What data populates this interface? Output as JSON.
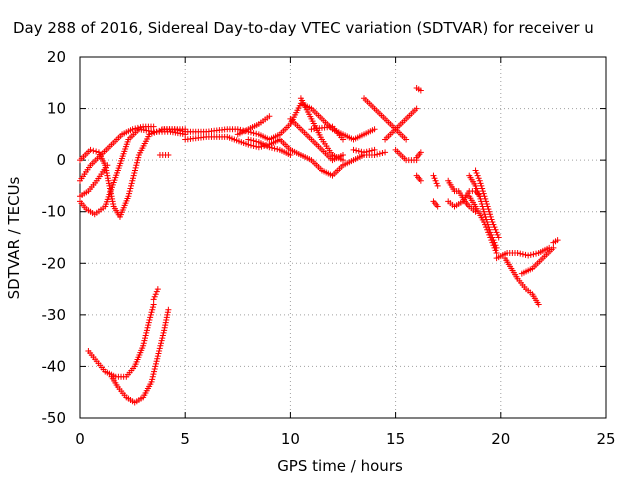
{
  "chart_data": {
    "type": "scatter",
    "title": "Day 288 of 2016, Sidereal Day-to-day VTEC variation (SDTVAR) for receiver u",
    "xlabel": "GPS time / hours",
    "ylabel": "SDTVAR / TECUs",
    "xlim": [
      0,
      25
    ],
    "ylim": [
      -50,
      20
    ],
    "xticks": [
      "0",
      "5",
      "10",
      "15",
      "20",
      "25"
    ],
    "yticks": [
      "20",
      "10",
      "0",
      "-10",
      "-20",
      "-30",
      "-40",
      "-50"
    ],
    "grid": true,
    "marker": "plus",
    "color": "#ff0000",
    "tracks": [
      [
        [
          0,
          -8
        ],
        [
          0.3,
          -9.5
        ],
        [
          0.7,
          -10.5
        ],
        [
          1.2,
          -9
        ],
        [
          1.8,
          -2
        ],
        [
          2.3,
          4
        ],
        [
          2.8,
          6
        ],
        [
          3.5,
          5.5
        ],
        [
          4.3,
          5.5
        ],
        [
          5,
          5
        ]
      ],
      [
        [
          0,
          0
        ],
        [
          0.5,
          2
        ],
        [
          0.9,
          1.5
        ],
        [
          1.2,
          -1
        ],
        [
          1.4,
          -5
        ],
        [
          1.6,
          -9
        ],
        [
          1.9,
          -11
        ],
        [
          2.3,
          -7
        ],
        [
          2.8,
          1
        ],
        [
          3.3,
          5
        ],
        [
          4,
          6
        ],
        [
          5,
          6
        ]
      ],
      [
        [
          0,
          -4
        ],
        [
          0.5,
          -1
        ],
        [
          1,
          1
        ],
        [
          1.5,
          3
        ],
        [
          2,
          5
        ],
        [
          2.5,
          6
        ],
        [
          3,
          6.5
        ],
        [
          3.5,
          6.5
        ]
      ],
      [
        [
          0,
          -7
        ],
        [
          0.4,
          -6
        ],
        [
          0.8,
          -4
        ],
        [
          1.3,
          -1
        ]
      ],
      [
        [
          3.8,
          1
        ],
        [
          4.2,
          1
        ]
      ],
      [
        [
          3.9,
          6
        ],
        [
          4.5,
          6
        ],
        [
          5,
          5.5
        ],
        [
          6,
          5.5
        ],
        [
          7,
          6
        ],
        [
          7.5,
          6
        ],
        [
          8.5,
          5
        ],
        [
          9,
          4
        ],
        [
          9.5,
          5
        ],
        [
          10,
          7
        ],
        [
          10.5,
          11
        ],
        [
          11,
          10
        ],
        [
          11.5,
          8
        ],
        [
          12,
          6
        ],
        [
          12.5,
          5
        ],
        [
          13,
          4
        ],
        [
          13.5,
          5
        ],
        [
          14,
          6
        ]
      ],
      [
        [
          5,
          4
        ],
        [
          6,
          4.5
        ],
        [
          7,
          4.5
        ],
        [
          8,
          3
        ],
        [
          8.5,
          2.5
        ],
        [
          9,
          3
        ],
        [
          9.5,
          4
        ],
        [
          10,
          2
        ],
        [
          10.5,
          1
        ],
        [
          11,
          0
        ],
        [
          11.5,
          -2
        ],
        [
          12,
          -3
        ],
        [
          12.5,
          -1
        ],
        [
          13,
          0
        ],
        [
          13.5,
          1
        ],
        [
          14,
          1
        ],
        [
          14.5,
          1.5
        ]
      ],
      [
        [
          8,
          4
        ],
        [
          8.5,
          3.5
        ],
        [
          9,
          2.5
        ],
        [
          9.5,
          2
        ],
        [
          10,
          1
        ]
      ],
      [
        [
          10,
          8
        ],
        [
          10.5,
          6
        ],
        [
          11,
          4
        ],
        [
          11.5,
          2
        ],
        [
          12,
          0
        ],
        [
          12.5,
          1
        ]
      ],
      [
        [
          10.5,
          12
        ],
        [
          11,
          8
        ],
        [
          11.5,
          4
        ],
        [
          12,
          1
        ],
        [
          12.5,
          0
        ]
      ],
      [
        [
          7.5,
          5
        ],
        [
          8,
          6
        ],
        [
          8.5,
          7
        ],
        [
          9,
          8.5
        ]
      ],
      [
        [
          11,
          6
        ],
        [
          12,
          6.5
        ],
        [
          12.5,
          4
        ]
      ],
      [
        [
          13,
          2
        ],
        [
          13.5,
          1.5
        ],
        [
          14,
          2
        ]
      ],
      [
        [
          13.5,
          12
        ],
        [
          14,
          10
        ],
        [
          14.5,
          8
        ],
        [
          15,
          6
        ],
        [
          15.5,
          4
        ]
      ],
      [
        [
          14.5,
          4
        ],
        [
          15,
          6
        ],
        [
          15.5,
          8
        ],
        [
          16,
          10
        ]
      ],
      [
        [
          15,
          2
        ],
        [
          15.5,
          0
        ],
        [
          16,
          0
        ]
      ],
      [
        [
          16,
          14
        ],
        [
          16.2,
          13.5
        ]
      ],
      [
        [
          16,
          0.5
        ],
        [
          16.2,
          1.5
        ]
      ],
      [
        [
          16,
          -3
        ],
        [
          16.2,
          -4
        ]
      ],
      [
        [
          16.8,
          -3
        ],
        [
          17,
          -5
        ]
      ],
      [
        [
          16.8,
          -8
        ],
        [
          17,
          -9
        ]
      ],
      [
        [
          17.5,
          -4
        ],
        [
          17.8,
          -6
        ],
        [
          18,
          -6
        ],
        [
          18.3,
          -8
        ],
        [
          18.5,
          -9
        ],
        [
          18.8,
          -10
        ]
      ],
      [
        [
          17.5,
          -8
        ],
        [
          17.8,
          -9
        ],
        [
          18.2,
          -8
        ],
        [
          18.5,
          -6
        ],
        [
          18.8,
          -6
        ],
        [
          19,
          -7
        ]
      ],
      [
        [
          18.5,
          -3
        ],
        [
          18.8,
          -5
        ],
        [
          19,
          -7
        ],
        [
          19.2,
          -10
        ],
        [
          19.5,
          -14
        ],
        [
          19.8,
          -17
        ]
      ],
      [
        [
          18.5,
          -7
        ],
        [
          18.8,
          -9
        ],
        [
          19.2,
          -12
        ],
        [
          19.5,
          -15
        ],
        [
          19.8,
          -18
        ]
      ],
      [
        [
          18.8,
          -2
        ],
        [
          19,
          -4
        ],
        [
          19.3,
          -8
        ],
        [
          19.6,
          -12
        ],
        [
          19.9,
          -15
        ]
      ],
      [
        [
          19.8,
          -19
        ],
        [
          20.3,
          -18
        ],
        [
          20.8,
          -18
        ],
        [
          21.3,
          -18.5
        ],
        [
          21.8,
          -18
        ],
        [
          22.3,
          -17
        ]
      ],
      [
        [
          20.2,
          -19
        ],
        [
          20.5,
          -21
        ],
        [
          20.8,
          -23
        ],
        [
          21.2,
          -25
        ],
        [
          21.5,
          -26
        ],
        [
          21.8,
          -28
        ]
      ],
      [
        [
          21,
          -22
        ],
        [
          21.5,
          -21
        ],
        [
          22,
          -19
        ],
        [
          22.5,
          -17
        ]
      ],
      [
        [
          22.5,
          -16
        ],
        [
          22.7,
          -15.5
        ]
      ],
      [
        [
          0.4,
          -37
        ],
        [
          0.8,
          -39
        ],
        [
          1.2,
          -41
        ],
        [
          1.7,
          -42
        ],
        [
          2.2,
          -42
        ],
        [
          2.6,
          -40
        ],
        [
          3,
          -36
        ],
        [
          3.3,
          -31
        ],
        [
          3.5,
          -28
        ]
      ],
      [
        [
          1.5,
          -42
        ],
        [
          1.8,
          -44
        ],
        [
          2.2,
          -46
        ],
        [
          2.6,
          -47
        ],
        [
          3,
          -46
        ],
        [
          3.4,
          -43
        ],
        [
          3.7,
          -38
        ],
        [
          4,
          -33
        ],
        [
          4.2,
          -29
        ]
      ],
      [
        [
          3.5,
          -27
        ],
        [
          3.7,
          -25
        ]
      ]
    ]
  }
}
